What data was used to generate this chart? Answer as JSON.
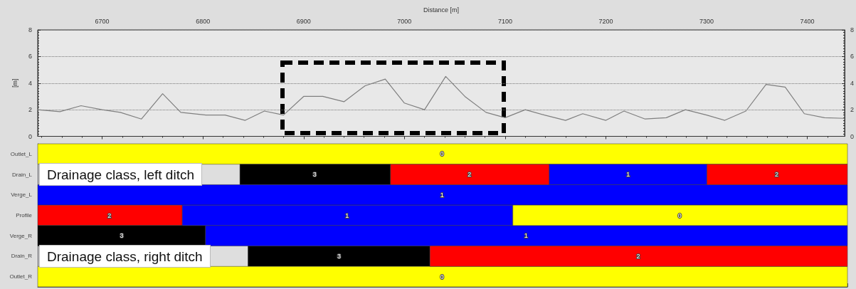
{
  "chart_data": [
    {
      "type": "line",
      "xlabel": "Distance [m]",
      "ylabel": "[m]",
      "x": [
        6636,
        6658,
        6679,
        6700,
        6718,
        6739,
        6760,
        6778,
        6803,
        6822,
        6842,
        6861,
        6880,
        6900,
        6919,
        6940,
        6961,
        6981,
        7000,
        7020,
        7041,
        7060,
        7081,
        7100,
        7120,
        7139,
        7160,
        7177,
        7200,
        7218,
        7239,
        7260,
        7279,
        7300,
        7318,
        7339,
        7359,
        7378,
        7397,
        7417,
        7437
      ],
      "series": [
        {
          "color": "#7f7f7f",
          "values": [
            2.0,
            1.85,
            2.3,
            2.0,
            1.8,
            1.3,
            3.2,
            1.8,
            1.6,
            1.6,
            1.2,
            1.9,
            1.6,
            3.0,
            3.0,
            2.6,
            3.8,
            4.3,
            2.5,
            2.0,
            4.5,
            3.0,
            1.8,
            1.4,
            2.0,
            1.6,
            1.2,
            1.7,
            1.2,
            1.9,
            1.3,
            1.4,
            2.0,
            1.6,
            1.2,
            1.9,
            3.9,
            3.7,
            1.7,
            1.4,
            1.35
          ]
        }
      ],
      "xlim": [
        6636,
        7437
      ],
      "xticks": [
        6700,
        6800,
        6900,
        7000,
        7100,
        7200,
        7300,
        7400
      ],
      "ylim": [
        0,
        8
      ],
      "yticks": [
        0,
        2,
        4,
        6,
        8
      ],
      "y2lim": [
        0,
        8
      ],
      "y2ticks": [
        0,
        2,
        4,
        6,
        8
      ],
      "grid": "y",
      "marker": "none",
      "line_style": "solid"
    },
    {
      "type": "bar",
      "orientation": "horizontal",
      "categories": [
        "Outlet_L",
        "Drain_L",
        "Verge_L",
        "Profile",
        "Verge_R",
        "Drain_R",
        "Outlet_R"
      ],
      "series": [
        {
          "base": [
            6636,
            6836,
            6636,
            6636,
            6636,
            6844,
            6636
          ],
          "values": [
            801,
            149,
            801,
            143,
            166,
            180,
            801
          ],
          "colors": [
            "#ffff00",
            "#000000",
            "#0000ff",
            "#ff0000",
            "#000000",
            "#000000",
            "#ffff00"
          ]
        },
        {
          "base": [
            null,
            6985,
            null,
            6779,
            6802,
            7024,
            null
          ],
          "values": [
            null,
            157,
            null,
            327,
            635,
            413,
            null
          ],
          "colors": [
            null,
            "#ff0000",
            null,
            "#0000ff",
            "#0000ff",
            "#ff0000",
            null
          ]
        },
        {
          "base": [
            null,
            7142,
            null,
            7106,
            null,
            null,
            null
          ],
          "values": [
            null,
            156,
            null,
            331,
            null,
            null,
            null
          ],
          "colors": [
            null,
            "#0000ff",
            null,
            "#ffff00",
            null,
            null,
            null
          ]
        },
        {
          "base": [
            null,
            7298,
            null,
            null,
            null,
            null,
            null
          ],
          "values": [
            null,
            139,
            null,
            null,
            null,
            null,
            null
          ],
          "colors": [
            null,
            "#ff0000",
            null,
            null,
            null,
            null,
            null
          ]
        }
      ],
      "xlim": [
        6636,
        7437
      ],
      "tick_labels": "y",
      "annotations": [
        {
          "text": "0",
          "x": 7036,
          "y": "Outlet_L"
        },
        {
          "text": "3",
          "x": 6910,
          "y": "Drain_L"
        },
        {
          "text": "2",
          "x": 7063,
          "y": "Drain_L"
        },
        {
          "text": "1",
          "x": 7220,
          "y": "Drain_L"
        },
        {
          "text": "2",
          "x": 7367,
          "y": "Drain_L"
        },
        {
          "text": "1",
          "x": 7036,
          "y": "Verge_L"
        },
        {
          "text": "2",
          "x": 6707,
          "y": "Profile"
        },
        {
          "text": "1",
          "x": 6942,
          "y": "Profile"
        },
        {
          "text": "0",
          "x": 7271,
          "y": "Profile"
        },
        {
          "text": "3",
          "x": 6719,
          "y": "Verge_R"
        },
        {
          "text": "1",
          "x": 7119,
          "y": "Verge_R"
        },
        {
          "text": "3",
          "x": 6934,
          "y": "Drain_R"
        },
        {
          "text": "2",
          "x": 7230,
          "y": "Drain_R"
        },
        {
          "text": "0",
          "x": 7036,
          "y": "Outlet_R"
        },
        {
          "text": "Drainage class, left ditch",
          "y": "Drain_L"
        },
        {
          "text": "Drainage class, right ditch",
          "y": "Drain_R"
        }
      ]
    }
  ]
}
